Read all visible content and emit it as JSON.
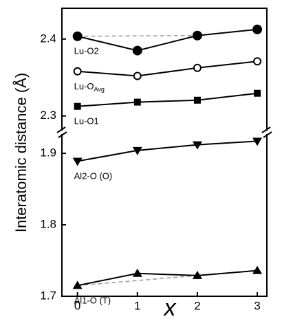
{
  "chart_data": [
    {
      "type": "line",
      "ylabel": "Interatomic distance (Å)",
      "x": [
        0,
        1,
        2,
        3
      ],
      "xlim": [
        -0.26,
        3.16
      ],
      "ylim": [
        2.281,
        2.44
      ],
      "yticks": [
        2.3,
        2.4
      ],
      "series": [
        {
          "name": "Lu-O2",
          "color": "#000000",
          "marker": "circle",
          "values": [
            2.4036,
            2.385,
            2.4045,
            2.4125
          ],
          "dashed_link": [
            0,
            2
          ]
        },
        {
          "name": "Lu-O",
          "name_sub": "Avg",
          "color": "#000000",
          "marker": "open-circle",
          "values": [
            2.358,
            2.352,
            2.3625,
            2.371
          ]
        },
        {
          "name": "Lu-O1",
          "color": "#000000",
          "marker": "square",
          "values": [
            2.3125,
            2.318,
            2.3205,
            2.3295
          ]
        }
      ]
    },
    {
      "type": "line",
      "xlabel": "x",
      "x": [
        0,
        1,
        2,
        3
      ],
      "xlim": [
        -0.26,
        3.16
      ],
      "xticks": [
        0,
        1,
        2,
        3
      ],
      "ylim": [
        1.7,
        1.927
      ],
      "yticks": [
        1.7,
        1.8,
        1.9
      ],
      "series": [
        {
          "name": "Al2-O (O)",
          "color": "#000000",
          "marker": "triangle-down",
          "values": [
            1.889,
            1.904,
            1.912,
            1.917
          ]
        },
        {
          "name": "Al1-O (T)",
          "color": "#000000",
          "marker": "triangle-up",
          "values": [
            1.715,
            1.732,
            1.729,
            1.736
          ],
          "dashed_link": [
            0,
            2
          ]
        }
      ]
    }
  ]
}
